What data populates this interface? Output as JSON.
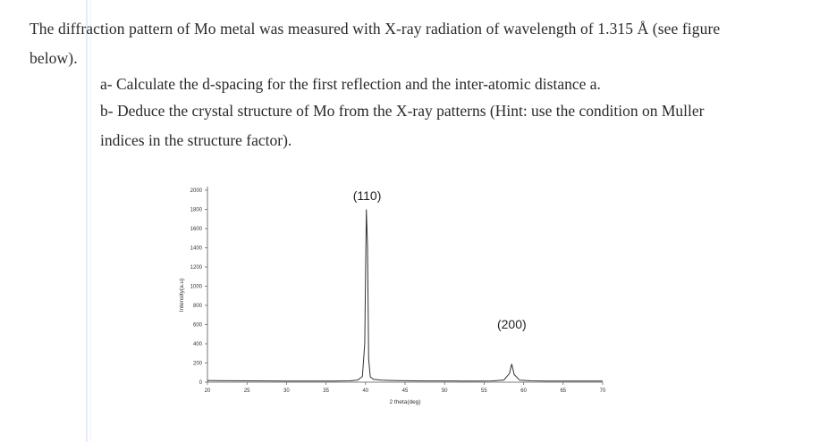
{
  "problem": {
    "intro_line1": "The diffraction pattern of Mo metal was measured with X-ray radiation of wavelength of 1.315 Å (see figure",
    "intro_line2": "below).",
    "question_a": "a- Calculate the d-spacing for the first reflection and the inter-atomic distance a.",
    "question_b_line1": "b- Deduce the crystal structure of Mo from the X-ray patterns (Hint: use the condition on Muller",
    "question_b_line2": "indices in the structure factor)."
  },
  "chart_data": {
    "type": "line",
    "title": "",
    "xlabel": "2 theta(deg)",
    "ylabel": "Intensity(a.u)",
    "xlim": [
      20,
      70
    ],
    "ylim": [
      0,
      2000
    ],
    "x_ticks": [
      20,
      25,
      30,
      35,
      40,
      45,
      50,
      55,
      60,
      65,
      70
    ],
    "y_ticks": [
      0,
      200,
      400,
      600,
      800,
      1000,
      1200,
      1400,
      1600,
      1800,
      2000
    ],
    "grid": false,
    "series": [
      {
        "x": [
          20,
          22,
          25,
          28,
          30,
          32,
          34,
          35,
          36,
          38,
          39,
          39.6,
          39.9,
          40.1,
          40.25,
          40.4,
          40.6,
          41,
          42,
          44,
          46,
          48,
          50,
          52,
          54,
          56,
          57.5,
          58.2,
          58.5,
          58.8,
          59.5,
          61,
          63,
          65,
          67,
          70
        ],
        "y": [
          18,
          15,
          14,
          13,
          12,
          12,
          12,
          11,
          12,
          14,
          22,
          60,
          400,
          1800,
          1420,
          240,
          55,
          30,
          20,
          16,
          14,
          13,
          13,
          12,
          12,
          13,
          22,
          90,
          190,
          80,
          20,
          14,
          12,
          12,
          11,
          11
        ]
      }
    ],
    "annotations": [
      {
        "text": "(110)",
        "x": 40.2,
        "y": 1900
      },
      {
        "text": "(200)",
        "x": 58.5,
        "y": 560
      }
    ],
    "line_color": "#333333"
  }
}
